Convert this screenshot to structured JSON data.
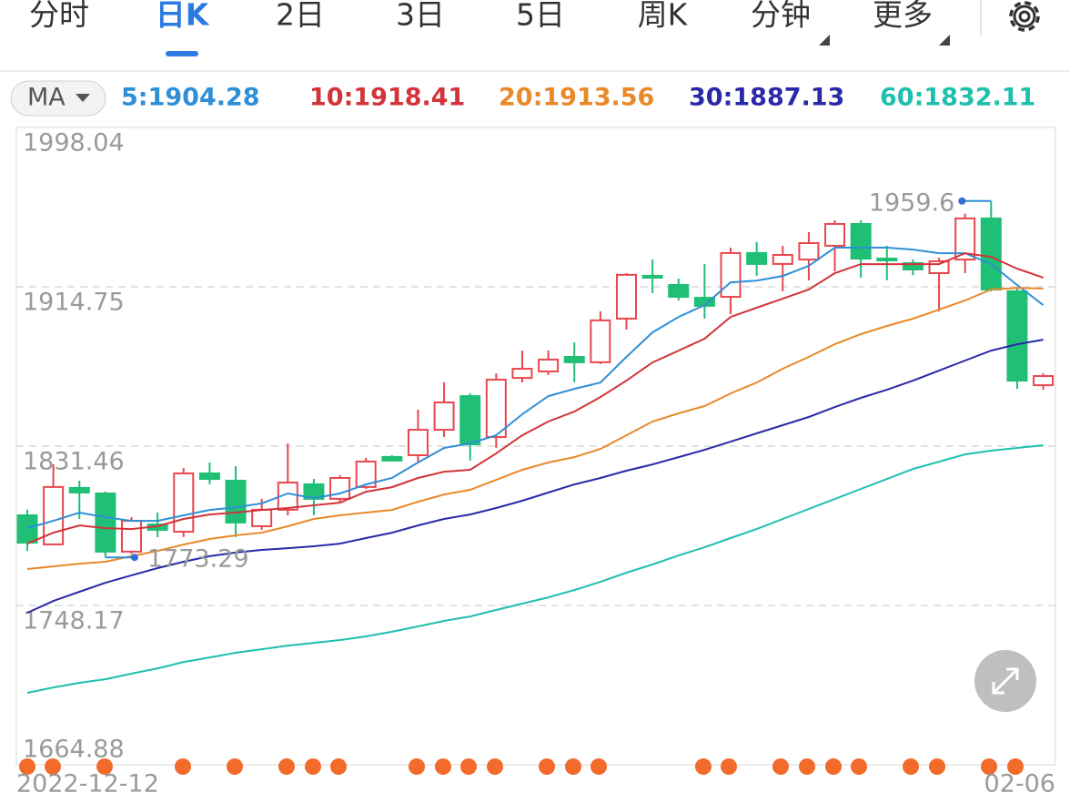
{
  "tabs": [
    "分时",
    "日K",
    "2日",
    "3日",
    "5日",
    "周K",
    "分钟",
    "更多"
  ],
  "active_tab": 1,
  "indicator": "MA",
  "chart_data": {
    "type": "candlestick",
    "categories": [
      "2022-12-12",
      null,
      null,
      null,
      null,
      null,
      null,
      null,
      null,
      null,
      null,
      null,
      null,
      null,
      null,
      null,
      null,
      null,
      null,
      null,
      null,
      null,
      null,
      null,
      null,
      null,
      null,
      null,
      null,
      null,
      null,
      null,
      null,
      null,
      null,
      null,
      null,
      null,
      null,
      "02-06"
    ],
    "open": [
      1795.3,
      1780.1,
      1809.6,
      1806.7,
      1776.3,
      1790.5,
      1786.7,
      1817.2,
      1813.4,
      1789.6,
      1798.2,
      1811.5,
      1803.9,
      1810.1,
      1825.8,
      1826.7,
      1840.0,
      1857.6,
      1836.2,
      1867.1,
      1870.5,
      1878.1,
      1875.3,
      1898.1,
      1920.5,
      1915.7,
      1909.0,
      1909.5,
      1932.4,
      1926.7,
      1929.0,
      1936.2,
      1947.6,
      1929.5,
      1927.1,
      1921.9,
      1929.0,
      1950.5,
      1912.4,
      1863.3
    ],
    "high": [
      1798.2,
      1822.0,
      1813.4,
      1807.7,
      1794.3,
      1796.7,
      1820.0,
      1822.9,
      1821.0,
      1803.9,
      1832.9,
      1814.3,
      1816.2,
      1825.3,
      1826.7,
      1850.5,
      1864.8,
      1859.1,
      1869.5,
      1881.4,
      1881.4,
      1885.7,
      1901.9,
      1921.9,
      1929.0,
      1919.0,
      1926.7,
      1935.2,
      1938.1,
      1936.2,
      1943.3,
      1949.5,
      1949.5,
      1936.2,
      1929.0,
      1930.0,
      1953.0,
      1959.6,
      1914.3,
      1869.5
    ],
    "low": [
      1776.7,
      1780.0,
      1793.4,
      1773.29,
      1775.0,
      1783.9,
      1783.9,
      1811.5,
      1783.9,
      1787.7,
      1795.3,
      1795.3,
      1801.9,
      1809.1,
      1823.9,
      1823.4,
      1836.2,
      1823.9,
      1830.5,
      1864.8,
      1868.6,
      1864.8,
      1874.3,
      1892.4,
      1911.4,
      1907.6,
      1898.1,
      1900.5,
      1920.5,
      1912.4,
      1918.1,
      1922.8,
      1919.5,
      1918.1,
      1920.9,
      1901.9,
      1921.9,
      1912.4,
      1861.4,
      1861.0
    ],
    "close": [
      1781.0,
      1810.1,
      1807.2,
      1776.3,
      1792.4,
      1787.7,
      1817.2,
      1814.3,
      1791.5,
      1798.2,
      1812.4,
      1803.9,
      1814.8,
      1823.4,
      1823.9,
      1840.0,
      1854.3,
      1832.4,
      1866.2,
      1871.9,
      1876.7,
      1875.3,
      1897.2,
      1921.0,
      1919.5,
      1909.5,
      1904.8,
      1932.4,
      1926.7,
      1931.4,
      1937.6,
      1947.6,
      1929.5,
      1928.6,
      1923.8,
      1928.1,
      1950.5,
      1913.3,
      1865.7,
      1868.1
    ],
    "up_color": "#e8474e",
    "down_color": "#1fbf75",
    "series": [
      {
        "name": "5:1904.28",
        "color": "#2f8fd6",
        "values": [
          1788.6,
          1792.4,
          1796.7,
          1794.3,
          1792.4,
          1792.4,
          1795.3,
          1798.1,
          1799.5,
          1801.5,
          1806.7,
          1804.3,
          1806.7,
          1811.4,
          1814.8,
          1822.9,
          1830.5,
          1832.9,
          1837.1,
          1848.1,
          1857.6,
          1861.4,
          1864.7,
          1878.1,
          1890.9,
          1899.0,
          1905.2,
          1917.1,
          1918.0,
          1920.4,
          1925.7,
          1935.2,
          1935.2,
          1935.2,
          1934.2,
          1932.3,
          1932.3,
          1926.6,
          1915.7,
          1905.2
        ]
      },
      {
        "name": "10:1918.41",
        "color": "#d2343a",
        "values": [
          1780.5,
          1786.2,
          1790.0,
          1788.6,
          1788.1,
          1789.6,
          1793.4,
          1795.7,
          1796.7,
          1798.1,
          1799.1,
          1800.5,
          1801.9,
          1807.6,
          1810.0,
          1814.8,
          1818.1,
          1819.1,
          1827.6,
          1837.1,
          1844.3,
          1849.5,
          1857.1,
          1865.7,
          1875.2,
          1881.4,
          1887.6,
          1899.0,
          1903.8,
          1908.5,
          1913.3,
          1921.9,
          1926.6,
          1926.6,
          1926.6,
          1926.6,
          1932.3,
          1930.4,
          1924.2,
          1919.5
        ]
      },
      {
        "name": "20:1913.56",
        "color": "#e8892a",
        "values": [
          1767.2,
          1768.6,
          1770.0,
          1771.0,
          1773.9,
          1776.7,
          1780.0,
          1782.9,
          1784.8,
          1786.2,
          1789.6,
          1793.4,
          1795.3,
          1796.7,
          1798.1,
          1802.4,
          1806.2,
          1808.6,
          1813.8,
          1819.1,
          1822.9,
          1825.7,
          1830.0,
          1837.1,
          1844.3,
          1848.6,
          1852.4,
          1859.0,
          1864.7,
          1871.9,
          1878.1,
          1884.7,
          1890.0,
          1894.3,
          1898.1,
          1902.8,
          1907.6,
          1913.3,
          1914.2,
          1913.8
        ]
      },
      {
        "name": "30:1887.13",
        "color": "#2a2aa8",
        "values": [
          1744.3,
          1750.5,
          1755.3,
          1760.0,
          1763.9,
          1767.7,
          1771.0,
          1773.9,
          1775.8,
          1777.2,
          1778.1,
          1779.1,
          1780.5,
          1783.4,
          1786.2,
          1790.0,
          1793.4,
          1795.7,
          1799.1,
          1802.9,
          1807.2,
          1811.4,
          1814.8,
          1818.6,
          1821.9,
          1825.7,
          1829.5,
          1833.8,
          1838.1,
          1842.4,
          1846.7,
          1851.9,
          1856.7,
          1860.9,
          1865.7,
          1870.9,
          1876.2,
          1881.4,
          1884.7,
          1887.1
        ]
      },
      {
        "name": "60:1832.11",
        "color": "#1fbfae",
        "values": [
          1702.5,
          1705.3,
          1707.7,
          1709.6,
          1712.5,
          1715.3,
          1718.6,
          1721.0,
          1723.4,
          1725.3,
          1727.2,
          1728.6,
          1730.1,
          1732.0,
          1734.4,
          1737.2,
          1740.1,
          1742.4,
          1745.8,
          1749.1,
          1752.4,
          1756.2,
          1760.5,
          1765.3,
          1769.6,
          1774.3,
          1778.6,
          1783.4,
          1788.1,
          1793.4,
          1798.6,
          1803.8,
          1809.1,
          1814.3,
          1819.5,
          1823.3,
          1827.2,
          1829.1,
          1830.5,
          1831.9
        ]
      }
    ],
    "ylim": [
      1664.88,
      1998.04
    ],
    "yticks": [
      1998.04,
      1914.75,
      1831.46,
      1748.17,
      1664.88
    ],
    "grid": true
  }
}
